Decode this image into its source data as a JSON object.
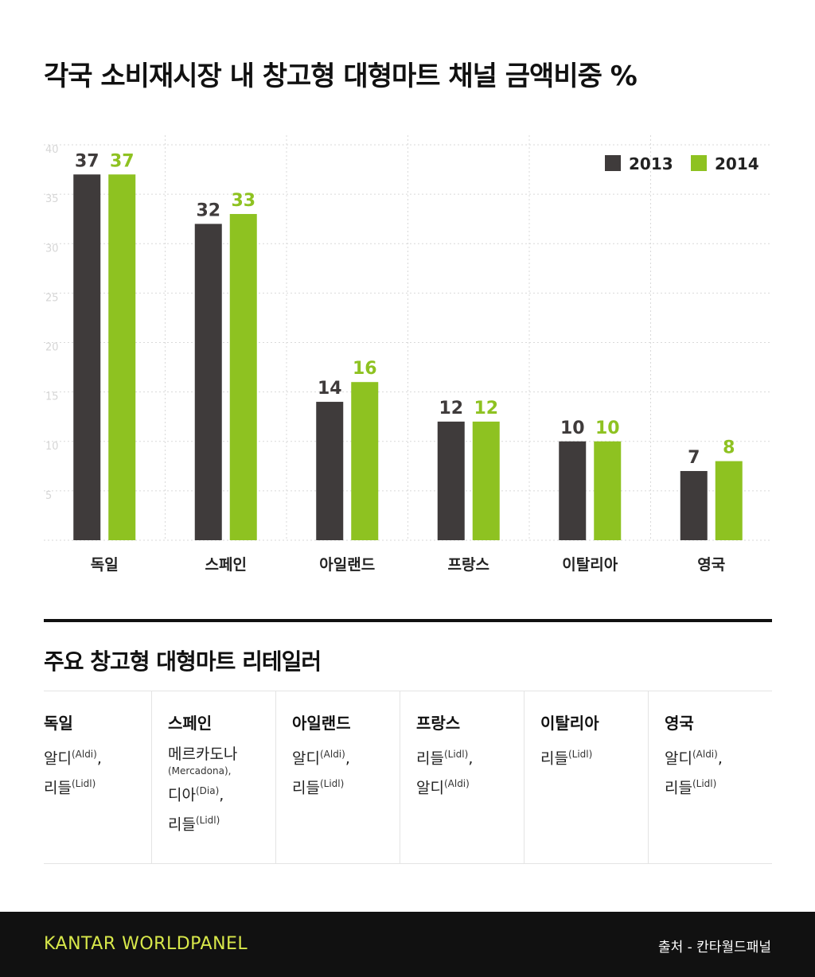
{
  "title": "각국 소비재시장 내 창고형 대형마트 채널 금액비중 %",
  "chart_data": {
    "type": "bar",
    "categories": [
      "독일",
      "스페인",
      "아일랜드",
      "프랑스",
      "이탈리아",
      "영국"
    ],
    "series": [
      {
        "name": "2013",
        "values": [
          37,
          32,
          14,
          12,
          10,
          7
        ],
        "color": "#3f3b3b"
      },
      {
        "name": "2014",
        "values": [
          37,
          33,
          16,
          12,
          10,
          8
        ],
        "color": "#8ec221"
      }
    ],
    "yticks": [
      5,
      10,
      15,
      20,
      25,
      30,
      35,
      40
    ],
    "ylim": [
      0,
      40
    ],
    "grid": true,
    "legend": "top-right"
  },
  "retailers": {
    "title": "주요 창고형 대형마트 리테일러",
    "countries": [
      {
        "name": "독일",
        "items": [
          {
            "ko": "알디",
            "en": "(Aldi)",
            "sep": ","
          },
          {
            "ko": "리들",
            "en": "(Lidl)",
            "sep": ""
          }
        ]
      },
      {
        "name": "스페인",
        "items": [
          {
            "ko": "메르카도나",
            "en": "(Mercadona)",
            "sep": ",",
            "en_below": true
          },
          {
            "ko": "디아",
            "en": "(Dia)",
            "sep": ","
          },
          {
            "ko": "리들",
            "en": "(Lidl)",
            "sep": ""
          }
        ]
      },
      {
        "name": "아일랜드",
        "items": [
          {
            "ko": "알디",
            "en": "(Aldi)",
            "sep": ","
          },
          {
            "ko": "리들",
            "en": "(Lidl)",
            "sep": ""
          }
        ]
      },
      {
        "name": "프랑스",
        "items": [
          {
            "ko": "리들",
            "en": "(Lidl)",
            "sep": ","
          },
          {
            "ko": "알디",
            "en": "(Aldi)",
            "sep": ""
          }
        ]
      },
      {
        "name": "이탈리아",
        "items": [
          {
            "ko": "리들",
            "en": "(Lidl)",
            "sep": ""
          }
        ]
      },
      {
        "name": "영국",
        "items": [
          {
            "ko": "알디",
            "en": "(Aldi)",
            "sep": ","
          },
          {
            "ko": "리들",
            "en": "(Lidl)",
            "sep": ""
          }
        ]
      }
    ]
  },
  "footer": {
    "brand": "KANTAR WORLDPANEL",
    "source": "출처 - 칸타월드패널"
  }
}
